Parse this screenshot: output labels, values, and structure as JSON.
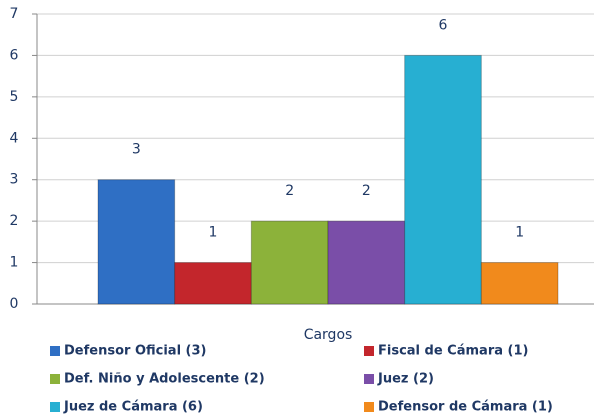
{
  "chart_data": {
    "type": "bar",
    "x_label": "Cargos",
    "categories": [
      null
    ],
    "series": [
      {
        "name": "Defensor Oficial (3)",
        "color": "#2f6fc4",
        "values": [
          3
        ]
      },
      {
        "name": "Fiscal de Cámara (1)",
        "color": "#c3262c",
        "values": [
          1
        ]
      },
      {
        "name": "Def. Niño y Adolescente (2)",
        "color": "#8cb23a",
        "values": [
          2
        ]
      },
      {
        "name": "Juez (2)",
        "color": "#7a4ea8",
        "values": [
          2
        ]
      },
      {
        "name": "Juez de Cámara  (6)",
        "color": "#27afd2",
        "values": [
          6
        ]
      },
      {
        "name": "Defensor de Cámara  (1)",
        "color": "#f18a1c",
        "values": [
          1
        ]
      }
    ],
    "ylim": [
      0,
      7
    ],
    "yticks": [
      0,
      1,
      2,
      3,
      4,
      5,
      6,
      7
    ],
    "grid": true
  }
}
